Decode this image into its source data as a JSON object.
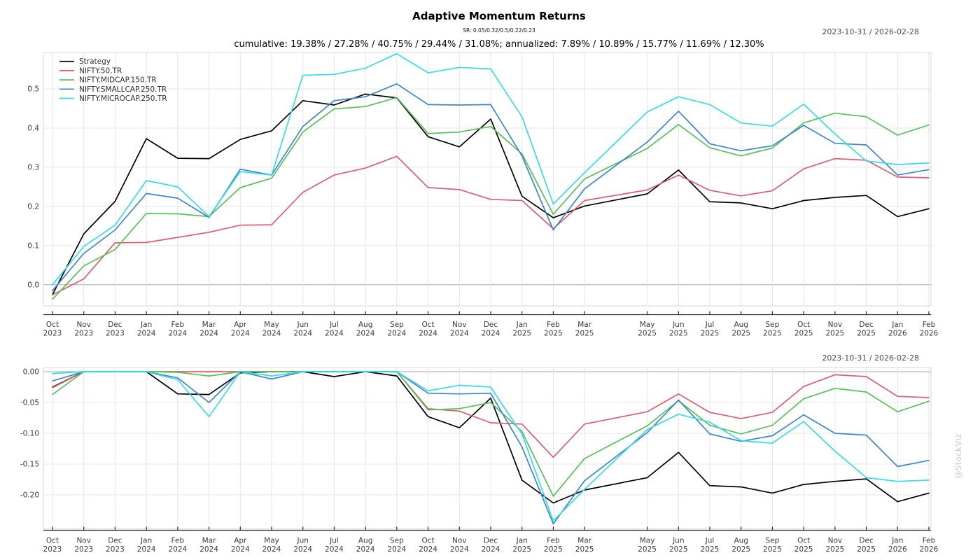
{
  "header": {
    "title": "Adaptive Momentum Returns",
    "subtitle": "SR: 0.05/0.32/0.5/0.22/0.23",
    "summary": "cumulative: 19.38% / 27.28% / 40.75% / 29.44% / 31.08%; annualized: 7.89% / 10.89% / 15.77% / 11.69% / 12.30%"
  },
  "panels": {
    "cumulative": {
      "date_range": "2023-10-31 / 2026-02-28"
    },
    "drawdown": {
      "date_range": "2023-10-31 / 2026-02-28"
    }
  },
  "watermark": "@StockViz",
  "colors": {
    "strategy": "#000000",
    "nifty50": "#e05c70",
    "midcap": "#57c057",
    "smallcap": "#3c87cf",
    "microcap": "#35dce8",
    "grid": "#e4e4e4",
    "zero_line": "#a8a8a8",
    "plot_border": "#d7d7d7",
    "axis": "#2b2b2b",
    "tick_text": "#3a3a3a"
  },
  "chart_data": [
    {
      "name": "cumulative-returns",
      "type": "line",
      "grid": true,
      "legend_position": "top-left",
      "show_legend": true,
      "x_months": [
        "Oct",
        "Nov",
        "Dec",
        "Jan",
        "Feb",
        "Mar",
        "Apr",
        "May",
        "Jun",
        "Jul",
        "Aug",
        "Sep",
        "Oct",
        "Nov",
        "Dec",
        "Jan",
        "Feb",
        "Mar",
        "May",
        "Jun",
        "Jul",
        "Aug",
        "Sep",
        "Oct",
        "Nov",
        "Dec",
        "Jan",
        "Feb"
      ],
      "x_years": [
        "2023",
        "2023",
        "2023",
        "2024",
        "2024",
        "2024",
        "2024",
        "2024",
        "2024",
        "2024",
        "2024",
        "2024",
        "2024",
        "2024",
        "2024",
        "2025",
        "2025",
        "2025",
        "2025",
        "2025",
        "2025",
        "2025",
        "2025",
        "2025",
        "2025",
        "2025",
        "2026",
        "2026"
      ],
      "x_month_index": [
        0,
        1,
        2,
        3,
        4,
        5,
        6,
        7,
        8,
        9,
        10,
        11,
        12,
        13,
        14,
        15,
        16,
        17,
        19,
        20,
        21,
        22,
        23,
        24,
        25,
        26,
        27,
        28
      ],
      "y_axis": {
        "labels": [
          "0.0",
          "0.1",
          "0.2",
          "0.3",
          "0.4",
          "0.5"
        ],
        "values": [
          0,
          0.1,
          0.2,
          0.3,
          0.4,
          0.5
        ]
      },
      "ylim": [
        -0.054,
        0.593
      ],
      "series": [
        {
          "name": "Strategy",
          "color": "#000000",
          "values": [
            -0.025,
            0.13,
            0.213,
            0.373,
            0.323,
            0.322,
            0.371,
            0.393,
            0.47,
            0.459,
            0.487,
            0.477,
            0.378,
            0.352,
            0.423,
            0.226,
            0.171,
            0.201,
            0.232,
            0.293,
            0.212,
            0.209,
            0.194,
            0.215,
            0.223,
            0.228,
            0.174,
            0.194
          ]
        },
        {
          "name": "NIFTY.50.TR",
          "color": "#e05c70",
          "values": [
            -0.026,
            0.015,
            0.107,
            0.108,
            0.121,
            0.134,
            0.152,
            0.153,
            0.236,
            0.28,
            0.298,
            0.328,
            0.248,
            0.243,
            0.218,
            0.215,
            0.143,
            0.215,
            0.242,
            0.28,
            0.241,
            0.227,
            0.24,
            0.296,
            0.322,
            0.318,
            0.275,
            0.273
          ]
        },
        {
          "name": "NIFTY.MIDCAP.150.TR",
          "color": "#57c057",
          "values": [
            -0.037,
            0.048,
            0.09,
            0.182,
            0.181,
            0.174,
            0.248,
            0.272,
            0.39,
            0.449,
            0.455,
            0.478,
            0.386,
            0.39,
            0.404,
            0.334,
            0.18,
            0.27,
            0.348,
            0.409,
            0.35,
            0.329,
            0.349,
            0.413,
            0.438,
            0.429,
            0.382,
            0.408
          ]
        },
        {
          "name": "NIFTY.SMALLCAP.250.TR",
          "color": "#3c87cf",
          "values": [
            -0.015,
            0.08,
            0.14,
            0.233,
            0.221,
            0.172,
            0.295,
            0.28,
            0.404,
            0.47,
            0.48,
            0.513,
            0.46,
            0.459,
            0.46,
            0.329,
            0.14,
            0.245,
            0.364,
            0.443,
            0.36,
            0.342,
            0.355,
            0.407,
            0.361,
            0.357,
            0.28,
            0.294
          ]
        },
        {
          "name": "NIFTY.MICROCAP.250.TR",
          "color": "#35dce8",
          "values": [
            0.0,
            0.098,
            0.152,
            0.266,
            0.25,
            0.174,
            0.289,
            0.28,
            0.535,
            0.537,
            0.553,
            0.59,
            0.541,
            0.555,
            0.551,
            0.429,
            0.206,
            0.286,
            0.441,
            0.48,
            0.46,
            0.413,
            0.405,
            0.461,
            0.385,
            0.316,
            0.307,
            0.311
          ]
        }
      ]
    },
    {
      "name": "drawdowns",
      "type": "line",
      "grid": true,
      "show_legend": false,
      "x_months": [
        "Oct",
        "Nov",
        "Dec",
        "Jan",
        "Feb",
        "Mar",
        "Apr",
        "May",
        "Jun",
        "Jul",
        "Aug",
        "Sep",
        "Oct",
        "Nov",
        "Dec",
        "Jan",
        "Feb",
        "Mar",
        "May",
        "Jun",
        "Jul",
        "Aug",
        "Sep",
        "Oct",
        "Nov",
        "Dec",
        "Jan",
        "Feb"
      ],
      "x_years": [
        "2023",
        "2023",
        "2023",
        "2024",
        "2024",
        "2024",
        "2024",
        "2024",
        "2024",
        "2024",
        "2024",
        "2024",
        "2024",
        "2024",
        "2024",
        "2025",
        "2025",
        "2025",
        "2025",
        "2025",
        "2025",
        "2025",
        "2025",
        "2025",
        "2025",
        "2025",
        "2026",
        "2026"
      ],
      "x_month_index": [
        0,
        1,
        2,
        3,
        4,
        5,
        6,
        7,
        8,
        9,
        10,
        11,
        12,
        13,
        14,
        15,
        16,
        17,
        19,
        20,
        21,
        22,
        23,
        24,
        25,
        26,
        27,
        28
      ],
      "y_axis": {
        "labels": [
          "0.00",
          "-0.05",
          "-0.10",
          "-0.15",
          "-0.20"
        ],
        "values": [
          0,
          -0.05,
          -0.1,
          -0.15,
          -0.2
        ]
      },
      "ylim": [
        -0.2545,
        0.0068
      ],
      "series": [
        {
          "name": "Strategy",
          "color": "#000000",
          "values": [
            -0.025,
            0,
            0,
            0,
            -0.036,
            -0.037,
            -0.002,
            0,
            0,
            -0.008,
            0,
            -0.007,
            -0.073,
            -0.091,
            -0.043,
            -0.176,
            -0.213,
            -0.192,
            -0.172,
            -0.131,
            -0.185,
            -0.187,
            -0.197,
            -0.183,
            -0.178,
            -0.174,
            -0.211,
            -0.197
          ]
        },
        {
          "name": "NIFTY.50.TR",
          "color": "#e05c70",
          "values": [
            -0.026,
            0,
            0,
            0,
            0,
            0,
            0,
            0,
            0,
            0,
            0,
            0,
            -0.06,
            -0.064,
            -0.083,
            -0.085,
            -0.139,
            -0.085,
            -0.065,
            -0.036,
            -0.066,
            -0.076,
            -0.066,
            -0.024,
            -0.005,
            -0.008,
            -0.04,
            -0.042
          ]
        },
        {
          "name": "NIFTY.MIDCAP.150.TR",
          "color": "#57c057",
          "values": [
            -0.037,
            0,
            0,
            0,
            -0.001,
            -0.007,
            0,
            0,
            0,
            0,
            0,
            0,
            -0.062,
            -0.06,
            -0.05,
            -0.097,
            -0.202,
            -0.141,
            -0.088,
            -0.047,
            -0.087,
            -0.101,
            -0.087,
            -0.044,
            -0.027,
            -0.033,
            -0.065,
            -0.048
          ]
        },
        {
          "name": "NIFTY.SMALLCAP.250.TR",
          "color": "#3c87cf",
          "values": [
            -0.015,
            0,
            0,
            0,
            -0.01,
            -0.05,
            0,
            -0.012,
            0,
            0,
            0,
            0,
            -0.035,
            -0.036,
            -0.035,
            -0.122,
            -0.247,
            -0.177,
            -0.099,
            -0.046,
            -0.101,
            -0.113,
            -0.104,
            -0.07,
            -0.1,
            -0.103,
            -0.154,
            -0.144
          ]
        },
        {
          "name": "NIFTY.MICROCAP.250.TR",
          "color": "#35dce8",
          "values": [
            -0.003,
            0,
            0,
            0,
            -0.013,
            -0.073,
            0,
            -0.007,
            0,
            0,
            0,
            0,
            -0.031,
            -0.022,
            -0.025,
            -0.101,
            -0.242,
            -0.191,
            -0.094,
            -0.069,
            -0.082,
            -0.112,
            -0.116,
            -0.081,
            -0.129,
            -0.172,
            -0.178,
            -0.176
          ]
        }
      ]
    }
  ]
}
